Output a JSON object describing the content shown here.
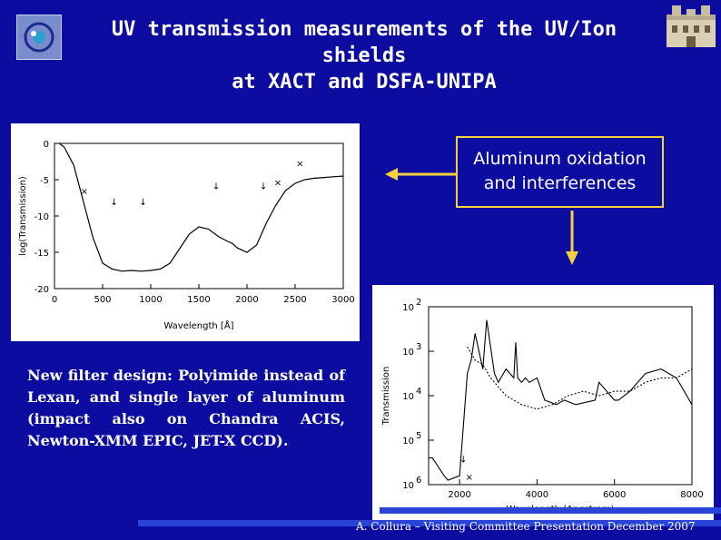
{
  "header": {
    "title_lines": [
      "UV transmission measurements of the UV/Ion",
      "shields",
      "at XACT and DSFA-UNIPA"
    ]
  },
  "callout": {
    "lines": [
      "Aluminum oxidation",
      "and interferences"
    ]
  },
  "note": {
    "text": "New filter design: Polyimide instead of Lexan, and single layer of aluminum (impact also on Chandra ACIS, Newton-XMM EPIC, JET-X CCD)."
  },
  "footer": {
    "text": "A. Collura – Visiting Committee Presentation December 2007"
  },
  "colors": {
    "background": "#0c0ca0",
    "callout_border": "#f2d23c",
    "arrow": "#f2d23c"
  },
  "chart_data": [
    {
      "type": "line",
      "xlabel": "Wavelength [Å]",
      "ylabel": "log(Transmission)",
      "xlim": [
        0,
        3000
      ],
      "ylim": [
        -20,
        0
      ],
      "x_ticks": [
        "0",
        "500",
        "1000",
        "1500",
        "2000",
        "2500",
        "3000"
      ],
      "y_ticks": [
        "0",
        "-5",
        "-10",
        "-15",
        "-20"
      ],
      "series": [
        {
          "x": [
            50,
            100,
            200,
            300,
            400,
            500,
            600,
            700,
            800,
            900,
            1000,
            1100,
            1200,
            1300,
            1400,
            1500,
            1600,
            1700,
            1800,
            1850,
            1900,
            2000,
            2100,
            2200,
            2300,
            2400,
            2500,
            2600,
            2700,
            2800,
            2900,
            3000
          ],
          "y": [
            0,
            -0.5,
            -3,
            -8,
            -13,
            -16.5,
            -17.3,
            -17.6,
            -17.5,
            -17.6,
            -17.5,
            -17.3,
            -16.5,
            -14.5,
            -12.5,
            -11.5,
            -11.8,
            -12.8,
            -13.5,
            -13.8,
            -14.4,
            -15,
            -14,
            -11,
            -8.5,
            -6.5,
            -5.5,
            -5,
            -4.8,
            -4.7,
            -4.6,
            -4.5
          ]
        }
      ],
      "markers": [
        {
          "symbol": "↓",
          "x": 620,
          "y": -8.5
        },
        {
          "symbol": "↓",
          "x": 920,
          "y": -8.5
        },
        {
          "symbol": "↓",
          "x": 1680,
          "y": -6.3
        },
        {
          "symbol": "↓",
          "x": 2170,
          "y": -6.3
        },
        {
          "symbol": "×",
          "x": 310,
          "y": -7
        },
        {
          "symbol": "×",
          "x": 2320,
          "y": -5.8
        },
        {
          "symbol": "×",
          "x": 2550,
          "y": -3.2
        }
      ]
    },
    {
      "type": "line",
      "xlabel": "Wavelength (Angstrom)",
      "ylabel": "Transmission",
      "xlim": [
        1200,
        8000
      ],
      "y_scale": "log",
      "ylim": [
        1e-06,
        0.01
      ],
      "x_ticks": [
        "2000",
        "4000",
        "6000",
        "8000"
      ],
      "y_ticks": [
        "10^-2",
        "10^-3",
        "10^-4",
        "10^-5",
        "10^-6"
      ],
      "series": [
        {
          "style": "solid",
          "x": [
            1200,
            1300,
            1600,
            1700,
            2000,
            2200,
            2300,
            2400,
            2600,
            2700,
            2800,
            2900,
            3000,
            3200,
            3400,
            3450,
            3500,
            3600,
            3700,
            3800,
            4000,
            4200,
            4500,
            4700,
            5000,
            5500,
            5600,
            5900,
            6000,
            6100,
            6400,
            6800,
            7200,
            7600,
            8000
          ],
          "exp": [
            -5.4,
            -5.4,
            -5.8,
            -5.9,
            -5.8,
            -3.5,
            -3.2,
            -2.6,
            -3.4,
            -2.3,
            -2.9,
            -3.5,
            -3.7,
            -3.4,
            -3.6,
            -2.8,
            -3.6,
            -3.7,
            -3.6,
            -3.7,
            -3.6,
            -4.1,
            -4.2,
            -4.1,
            -4.2,
            -4.1,
            -3.7,
            -4.0,
            -4.1,
            -4.1,
            -3.9,
            -3.5,
            -3.4,
            -3.6,
            -4.2
          ]
        },
        {
          "style": "dotted",
          "x": [
            2200,
            2400,
            2600,
            2800,
            3000,
            3200,
            3400,
            3600,
            4000,
            4400,
            4800,
            5200,
            5600,
            6000,
            6400,
            6800,
            7200,
            7600,
            8000
          ],
          "exp": [
            -2.9,
            -3.2,
            -3.3,
            -3.6,
            -3.8,
            -4.0,
            -4.1,
            -4.2,
            -4.3,
            -4.2,
            -4.0,
            -3.9,
            -4.0,
            -3.9,
            -3.9,
            -3.7,
            -3.6,
            -3.6,
            -3.4
          ]
        }
      ],
      "markers": [
        {
          "symbol": "↓",
          "x": 2100,
          "exp": -5.5
        },
        {
          "symbol": "×",
          "x": 2250,
          "exp": -5.9
        }
      ]
    }
  ]
}
